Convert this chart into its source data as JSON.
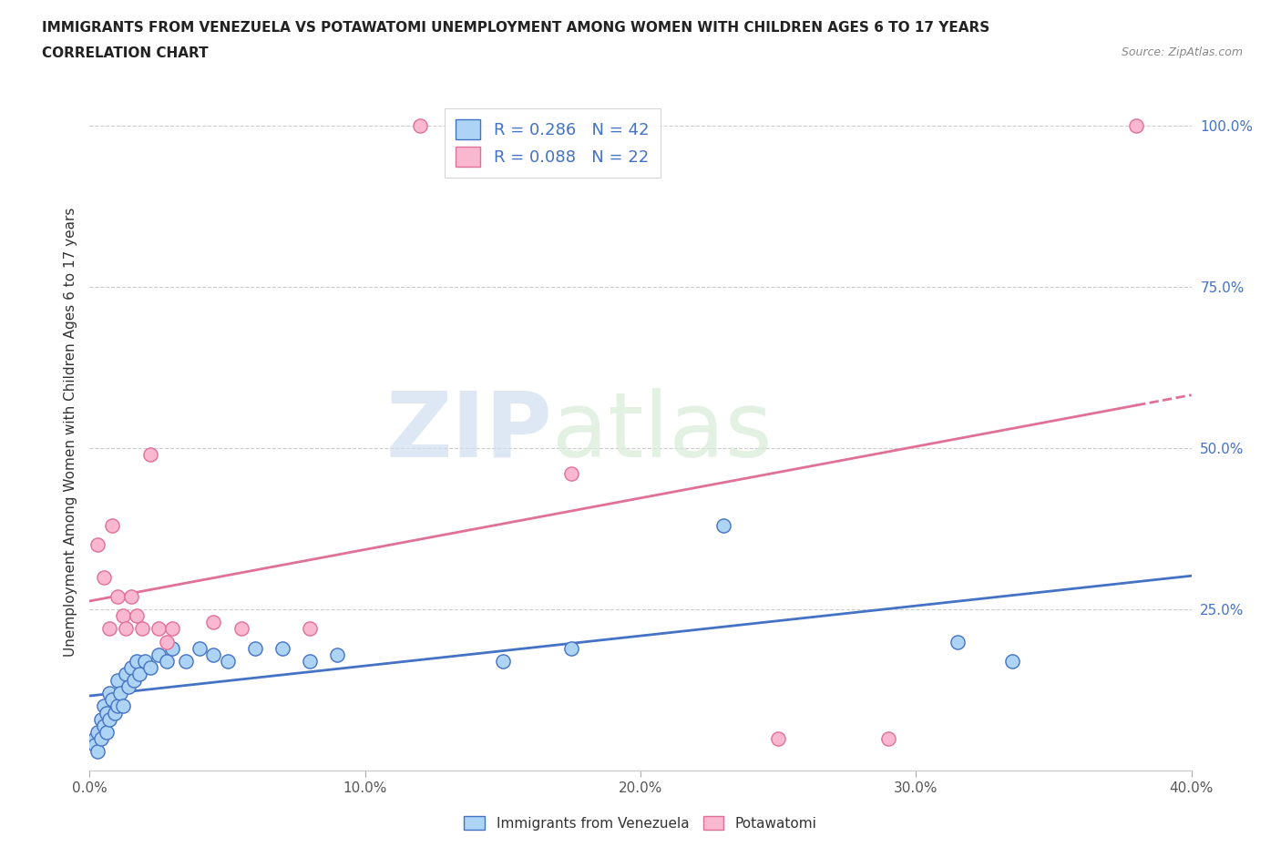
{
  "title_line1": "IMMIGRANTS FROM VENEZUELA VS POTAWATOMI UNEMPLOYMENT AMONG WOMEN WITH CHILDREN AGES 6 TO 17 YEARS",
  "title_line2": "CORRELATION CHART",
  "source": "Source: ZipAtlas.com",
  "ylabel": "Unemployment Among Women with Children Ages 6 to 17 years",
  "xlim": [
    0.0,
    0.4
  ],
  "ylim": [
    0.0,
    1.05
  ],
  "xtick_labels": [
    "0.0%",
    "",
    "",
    "",
    "",
    "",
    "",
    "",
    "",
    "",
    "10.0%",
    "",
    "",
    "",
    "",
    "",
    "",
    "",
    "",
    "",
    "20.0%",
    "",
    "",
    "",
    "",
    "",
    "",
    "",
    "",
    "",
    "30.0%",
    "",
    "",
    "",
    "",
    "",
    "",
    "",
    "",
    "",
    "40.0%"
  ],
  "xtick_vals": [
    0.0,
    0.01,
    0.02,
    0.03,
    0.04,
    0.05,
    0.06,
    0.07,
    0.08,
    0.09,
    0.1,
    0.11,
    0.12,
    0.13,
    0.14,
    0.15,
    0.16,
    0.17,
    0.18,
    0.19,
    0.2,
    0.21,
    0.22,
    0.23,
    0.24,
    0.25,
    0.26,
    0.27,
    0.28,
    0.29,
    0.3,
    0.31,
    0.32,
    0.33,
    0.34,
    0.35,
    0.36,
    0.37,
    0.38,
    0.39,
    0.4
  ],
  "xtick_major": [
    0.0,
    0.1,
    0.2,
    0.3,
    0.4
  ],
  "xtick_major_labels": [
    "0.0%",
    "10.0%",
    "20.0%",
    "30.0%",
    "40.0%"
  ],
  "ytick_labels": [
    "25.0%",
    "50.0%",
    "75.0%",
    "100.0%"
  ],
  "ytick_vals": [
    0.25,
    0.5,
    0.75,
    1.0
  ],
  "color_blue": "#AED4F5",
  "color_pink": "#F9B8D0",
  "line_blue": "#4472C4",
  "line_pink": "#E07098",
  "legend_color": "#4472C4",
  "R_blue": 0.286,
  "N_blue": 42,
  "R_pink": 0.088,
  "N_pink": 22,
  "watermark_zip": "ZIP",
  "watermark_atlas": "atlas",
  "blue_points": [
    [
      0.002,
      0.05
    ],
    [
      0.002,
      0.04
    ],
    [
      0.003,
      0.06
    ],
    [
      0.003,
      0.03
    ],
    [
      0.004,
      0.08
    ],
    [
      0.004,
      0.05
    ],
    [
      0.005,
      0.1
    ],
    [
      0.005,
      0.07
    ],
    [
      0.006,
      0.09
    ],
    [
      0.006,
      0.06
    ],
    [
      0.007,
      0.12
    ],
    [
      0.007,
      0.08
    ],
    [
      0.008,
      0.11
    ],
    [
      0.009,
      0.09
    ],
    [
      0.01,
      0.14
    ],
    [
      0.01,
      0.1
    ],
    [
      0.011,
      0.12
    ],
    [
      0.012,
      0.1
    ],
    [
      0.013,
      0.15
    ],
    [
      0.014,
      0.13
    ],
    [
      0.015,
      0.16
    ],
    [
      0.016,
      0.14
    ],
    [
      0.017,
      0.17
    ],
    [
      0.018,
      0.15
    ],
    [
      0.02,
      0.17
    ],
    [
      0.022,
      0.16
    ],
    [
      0.025,
      0.18
    ],
    [
      0.028,
      0.17
    ],
    [
      0.03,
      0.19
    ],
    [
      0.035,
      0.17
    ],
    [
      0.04,
      0.19
    ],
    [
      0.045,
      0.18
    ],
    [
      0.05,
      0.17
    ],
    [
      0.06,
      0.19
    ],
    [
      0.07,
      0.19
    ],
    [
      0.08,
      0.17
    ],
    [
      0.09,
      0.18
    ],
    [
      0.15,
      0.17
    ],
    [
      0.175,
      0.19
    ],
    [
      0.23,
      0.38
    ],
    [
      0.315,
      0.2
    ],
    [
      0.335,
      0.17
    ]
  ],
  "pink_points": [
    [
      0.003,
      0.35
    ],
    [
      0.005,
      0.3
    ],
    [
      0.007,
      0.22
    ],
    [
      0.008,
      0.38
    ],
    [
      0.01,
      0.27
    ],
    [
      0.012,
      0.24
    ],
    [
      0.013,
      0.22
    ],
    [
      0.015,
      0.27
    ],
    [
      0.017,
      0.24
    ],
    [
      0.019,
      0.22
    ],
    [
      0.022,
      0.49
    ],
    [
      0.025,
      0.22
    ],
    [
      0.028,
      0.2
    ],
    [
      0.03,
      0.22
    ],
    [
      0.045,
      0.23
    ],
    [
      0.055,
      0.22
    ],
    [
      0.08,
      0.22
    ],
    [
      0.12,
      1.0
    ],
    [
      0.175,
      0.46
    ],
    [
      0.25,
      0.05
    ],
    [
      0.29,
      0.05
    ],
    [
      0.38,
      1.0
    ]
  ]
}
